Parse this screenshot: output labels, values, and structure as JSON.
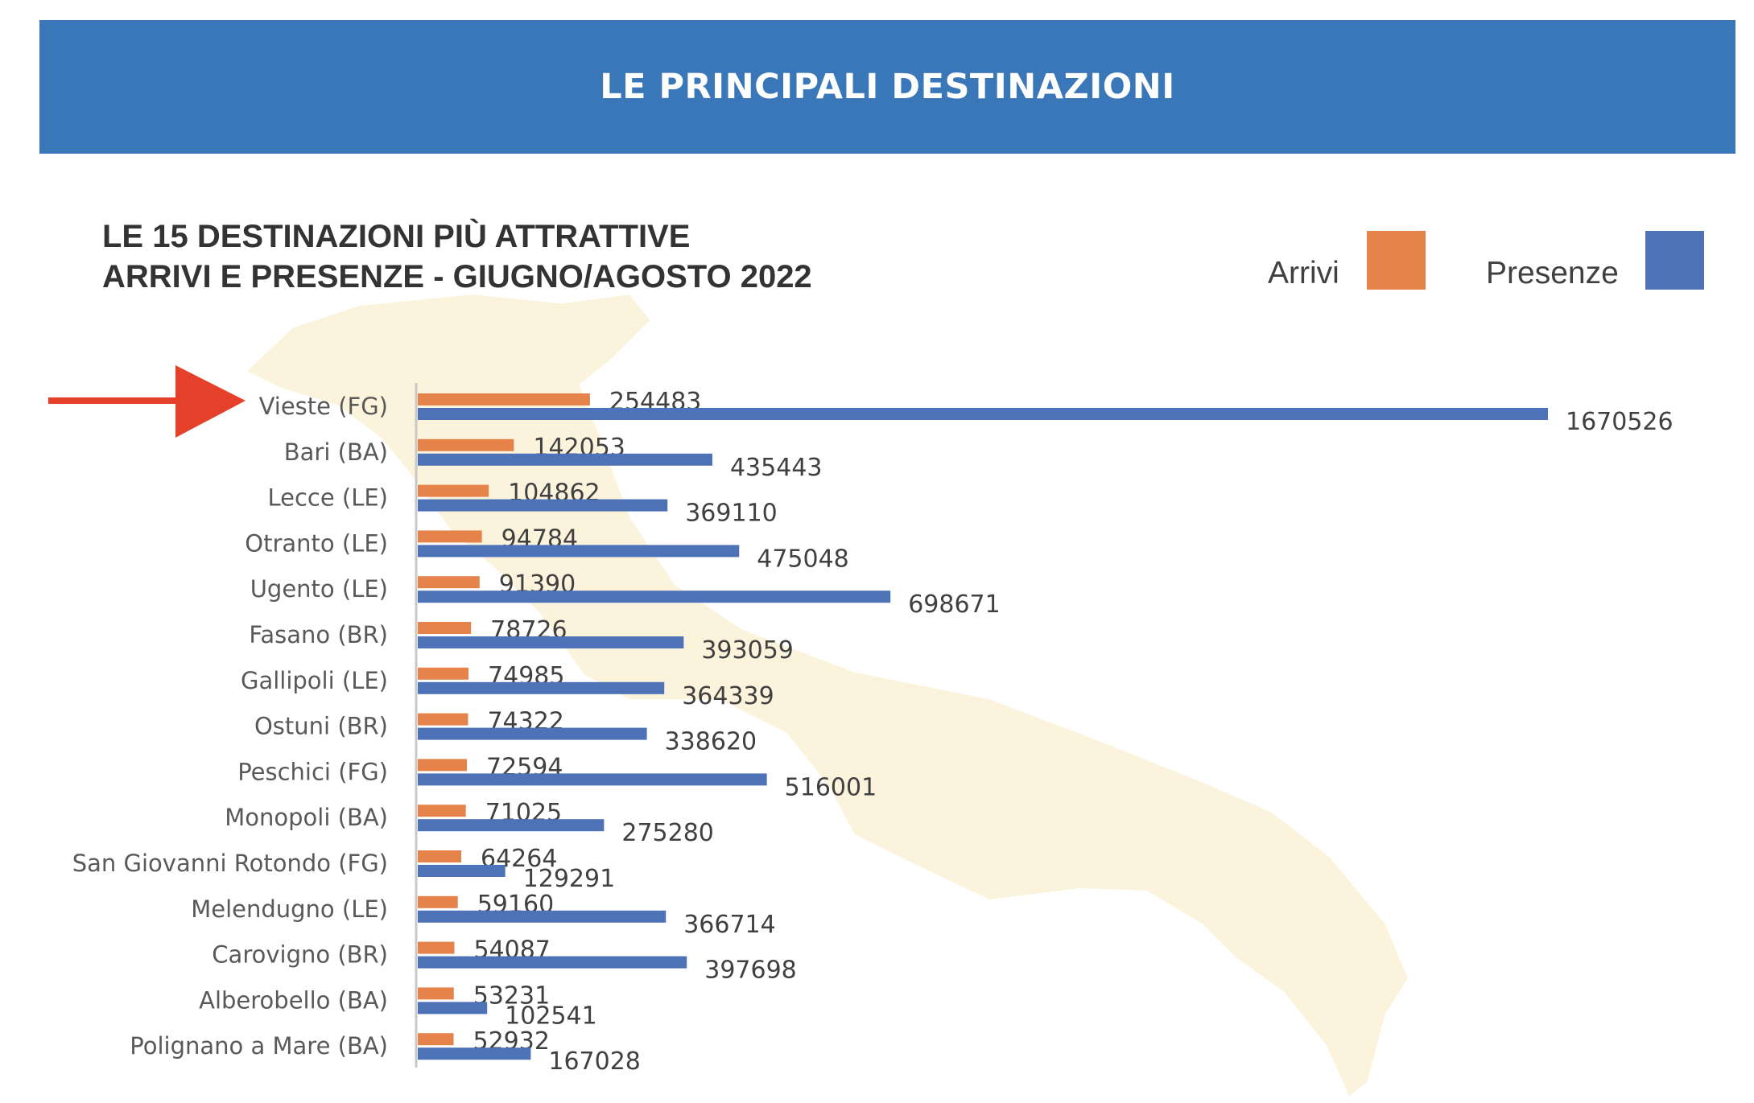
{
  "header": {
    "title": "LE PRINCIPALI DESTINAZIONI"
  },
  "colors": {
    "banner": "#3a77b8",
    "arrivi": "#e5834a",
    "presenze": "#4e72b8",
    "arrow": "#e5402a",
    "map": "#fcf3dc"
  },
  "annotation": {
    "arrow_icon": "red-arrow-pointing-to-vieste"
  },
  "chart_data": {
    "type": "bar",
    "orientation": "horizontal",
    "title": [
      "LE 15 DESTINAZIONI PIÙ ATTRATTIVE",
      "ARRIVI E PRESENZE - GIUGNO/AGOSTO 2022"
    ],
    "legend_position": "top-right",
    "grid": false,
    "xlim": [
      0,
      1670526
    ],
    "categories": [
      "Vieste (FG)",
      "Bari (BA)",
      "Lecce (LE)",
      "Otranto (LE)",
      "Ugento (LE)",
      "Fasano (BR)",
      "Gallipoli (LE)",
      "Ostuni (BR)",
      "Peschici (FG)",
      "Monopoli (BA)",
      "San Giovanni Rotondo (FG)",
      "Melendugno (LE)",
      "Carovigno (BR)",
      "Alberobello (BA)",
      "Polignano a Mare (BA)"
    ],
    "series": [
      {
        "name": "Arrivi",
        "color": "#e5834a",
        "values": [
          254483,
          142053,
          104862,
          94784,
          91390,
          78726,
          74985,
          74322,
          72594,
          71025,
          64264,
          59160,
          54087,
          53231,
          52932
        ]
      },
      {
        "name": "Presenze",
        "color": "#4e72b8",
        "values": [
          1670526,
          435443,
          369110,
          475048,
          698671,
          393059,
          364339,
          338620,
          516001,
          275280,
          129291,
          366714,
          397698,
          102541,
          167028
        ]
      }
    ]
  }
}
